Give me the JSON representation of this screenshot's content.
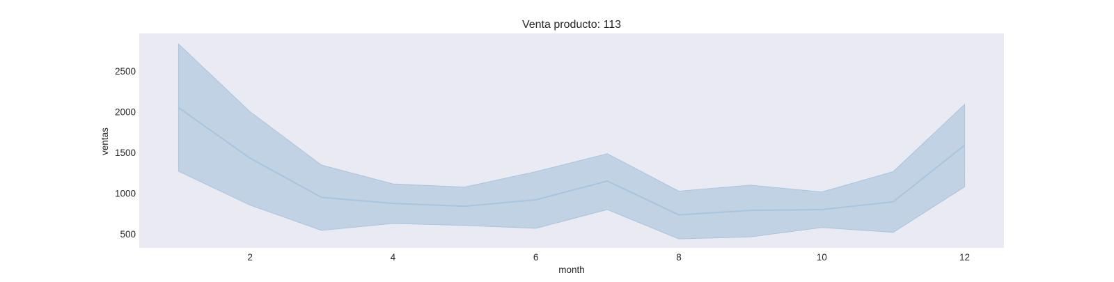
{
  "chart_data": {
    "type": "line",
    "title": "Venta producto: 113",
    "xlabel": "month",
    "ylabel": "ventas",
    "x": [
      1,
      2,
      3,
      4,
      5,
      6,
      7,
      8,
      9,
      10,
      11,
      12
    ],
    "xlim": [
      0.45,
      12.55
    ],
    "ylim": [
      330,
      2960
    ],
    "xticks": [
      2,
      4,
      6,
      8,
      10,
      12
    ],
    "yticks": [
      500,
      1000,
      1500,
      2000,
      2500
    ],
    "grid": false,
    "series": [
      {
        "values": [
          2050,
          1430,
          950,
          875,
          840,
          920,
          1150,
          735,
          790,
          800,
          895,
          1590
        ],
        "ci_lower": [
          1270,
          855,
          545,
          630,
          605,
          570,
          800,
          440,
          465,
          580,
          520,
          1080
        ],
        "ci_upper": [
          2830,
          2000,
          1345,
          1115,
          1075,
          1265,
          1485,
          1025,
          1100,
          1015,
          1265,
          2090
        ]
      }
    ],
    "colors": {
      "plot_background": "#eaeaf2",
      "line": "#a9c4de",
      "band_fill": "#b3c9e0",
      "band_edge": "#a9c4de"
    }
  }
}
